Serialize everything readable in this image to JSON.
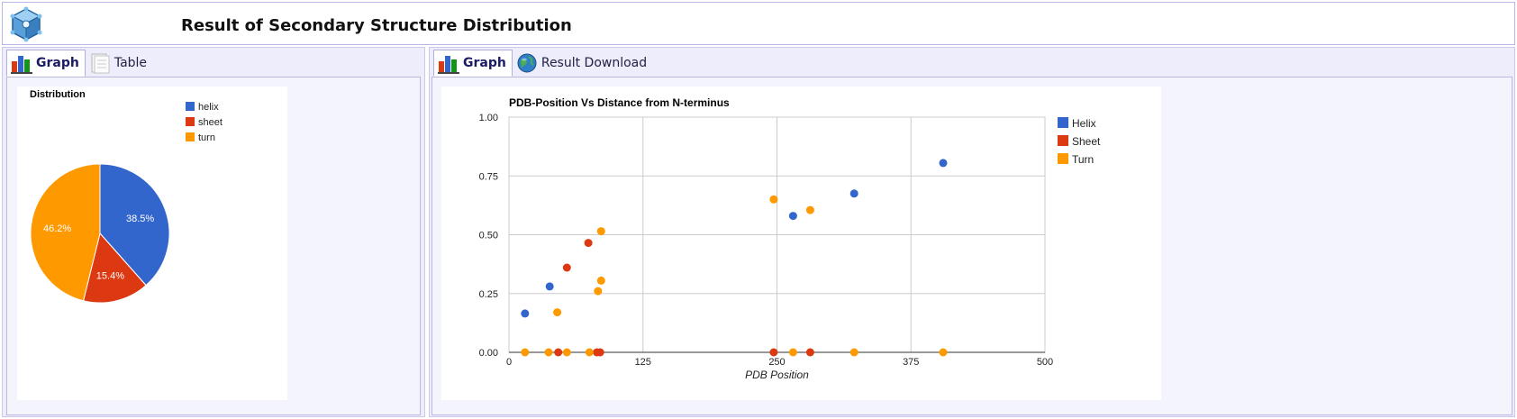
{
  "header": {
    "title": "Result of Secondary Structure Distribution",
    "logo_icon": "molecule-cube-icon"
  },
  "left_panel": {
    "tabs": [
      {
        "label": "Graph",
        "icon": "bar-chart-icon",
        "active": true
      },
      {
        "label": "Table",
        "icon": "table-icon",
        "active": false
      }
    ]
  },
  "right_panel": {
    "tabs": [
      {
        "label": "Graph",
        "icon": "bar-chart-icon",
        "active": true
      },
      {
        "label": "Result Download",
        "icon": "globe-icon",
        "active": false
      }
    ]
  },
  "colors": {
    "helix": "#3366cc",
    "sheet": "#dc3912",
    "turn": "#ff9900",
    "panel_bg": "#ededfb",
    "grid": "#cccccc"
  },
  "chart_data": [
    {
      "type": "pie",
      "title": "Distribution",
      "legend_position": "top-right",
      "slices": [
        {
          "label": "helix",
          "value": 38.5,
          "display": "38.5%",
          "color": "#3366cc"
        },
        {
          "label": "sheet",
          "value": 15.4,
          "display": "15.4%",
          "color": "#dc3912"
        },
        {
          "label": "turn",
          "value": 46.2,
          "display": "46.2%",
          "color": "#ff9900"
        }
      ]
    },
    {
      "type": "scatter",
      "title": "PDB-Position Vs Distance from N-terminus",
      "xlabel": "PDB Position",
      "ylabel": "",
      "xlim": [
        0,
        500
      ],
      "ylim": [
        0,
        1
      ],
      "xticks": [
        0,
        125,
        250,
        375,
        500
      ],
      "yticks": [
        "0.00",
        "0.25",
        "0.50",
        "0.75",
        "1.00"
      ],
      "grid": true,
      "legend_position": "right",
      "series": [
        {
          "name": "Helix",
          "color": "#3366cc",
          "points": [
            [
              15,
              0.165
            ],
            [
              38,
              0.28
            ],
            [
              265,
              0.58
            ],
            [
              322,
              0.675
            ],
            [
              405,
              0.805
            ]
          ]
        },
        {
          "name": "Sheet",
          "color": "#dc3912",
          "points": [
            [
              74,
              0.465
            ],
            [
              54,
              0.36
            ],
            [
              46,
              0
            ],
            [
              82,
              0
            ],
            [
              85,
              0
            ],
            [
              247,
              0
            ],
            [
              281,
              0
            ]
          ]
        },
        {
          "name": "Turn",
          "color": "#ff9900",
          "points": [
            [
              15,
              0
            ],
            [
              37,
              0
            ],
            [
              45,
              0.17
            ],
            [
              54,
              0
            ],
            [
              75,
              0
            ],
            [
              83,
              0.26
            ],
            [
              86,
              0.515
            ],
            [
              86,
              0.305
            ],
            [
              247,
              0.65
            ],
            [
              265,
              0
            ],
            [
              281,
              0.605
            ],
            [
              322,
              0
            ],
            [
              405,
              0
            ]
          ]
        }
      ]
    }
  ]
}
